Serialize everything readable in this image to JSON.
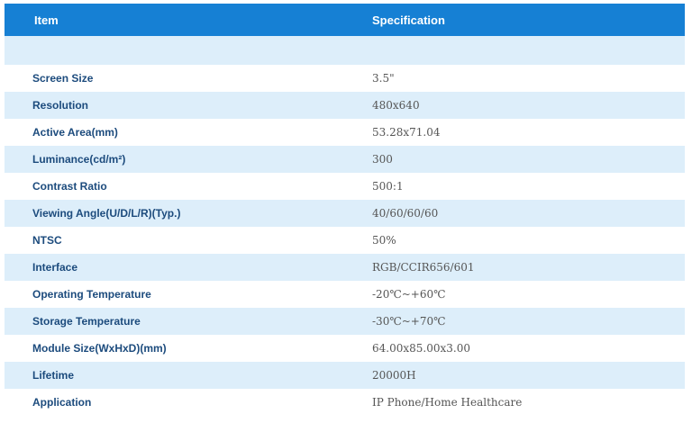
{
  "table": {
    "headers": {
      "item": "Item",
      "specification": "Specification"
    },
    "rows": [
      {
        "item": "Screen Size",
        "spec": "3.5\""
      },
      {
        "item": "Resolution",
        "spec": "480x640"
      },
      {
        "item": "Active Area(mm)",
        "spec": "53.28x71.04"
      },
      {
        "item": "Luminance(cd/m²)",
        "spec": "300"
      },
      {
        "item": "Contrast Ratio",
        "spec": "500:1"
      },
      {
        "item": "Viewing Angle(U/D/L/R)(Typ.)",
        "spec": "40/60/60/60"
      },
      {
        "item": "NTSC",
        "spec": "50%"
      },
      {
        "item": "Interface",
        "spec": "RGB/CCIR656/601"
      },
      {
        "item": "Operating Temperature",
        "spec": "-20℃~+60℃"
      },
      {
        "item": "Storage Temperature",
        "spec": "-30℃~+70℃"
      },
      {
        "item": "Module Size(WxHxD)(mm)",
        "spec": "64.00x85.00x3.00"
      },
      {
        "item": "Lifetime",
        "spec": "20000H"
      },
      {
        "item": "Application",
        "spec": "IP Phone/Home Healthcare"
      }
    ]
  },
  "colors": {
    "header_background": "#1680d4",
    "row_alt_background": "#ddeefa",
    "label_text": "#1c4b7d",
    "value_text": "#555555"
  }
}
